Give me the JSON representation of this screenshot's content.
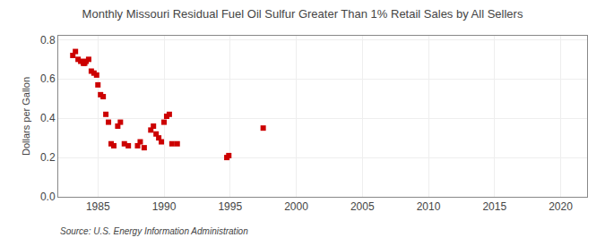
{
  "chart_data": {
    "type": "scatter",
    "title": "Monthly Missouri Residual Fuel Oil Sulfur Greater Than 1% Retail Sales by All Sellers",
    "ylabel": "Dollars per Gallon",
    "annotations": [
      "Source: U.S. Energy Information Administration"
    ],
    "color": "#cc0000",
    "marker": "square",
    "grid": true,
    "xlim": [
      1982,
      2022
    ],
    "ylim": [
      0.0,
      0.82
    ],
    "xticks": [
      1985,
      1990,
      1995,
      2000,
      2005,
      2010,
      2015,
      2020
    ],
    "yticks": [
      {
        "value": 0.0,
        "label": "0.0"
      },
      0.2,
      0.4,
      0.6,
      0.8
    ],
    "x": [
      1983.1,
      1983.3,
      1983.5,
      1983.7,
      1983.9,
      1984.0,
      1984.1,
      1984.3,
      1984.5,
      1984.7,
      1984.9,
      1985.0,
      1985.2,
      1985.4,
      1985.6,
      1985.8,
      1986.0,
      1986.2,
      1986.5,
      1986.7,
      1987.0,
      1987.3,
      1988.0,
      1988.2,
      1988.5,
      1989.0,
      1989.2,
      1989.4,
      1989.6,
      1989.8,
      1990.0,
      1990.2,
      1990.4,
      1990.6,
      1991.0,
      1994.75,
      1994.9,
      1997.5
    ],
    "values": [
      0.72,
      0.74,
      0.7,
      0.69,
      0.68,
      0.68,
      0.69,
      0.7,
      0.64,
      0.63,
      0.62,
      0.57,
      0.52,
      0.51,
      0.42,
      0.38,
      0.27,
      0.26,
      0.36,
      0.38,
      0.27,
      0.26,
      0.26,
      0.28,
      0.25,
      0.34,
      0.36,
      0.32,
      0.3,
      0.28,
      0.38,
      0.41,
      0.42,
      0.27,
      0.27,
      0.2,
      0.21,
      0.35
    ]
  }
}
